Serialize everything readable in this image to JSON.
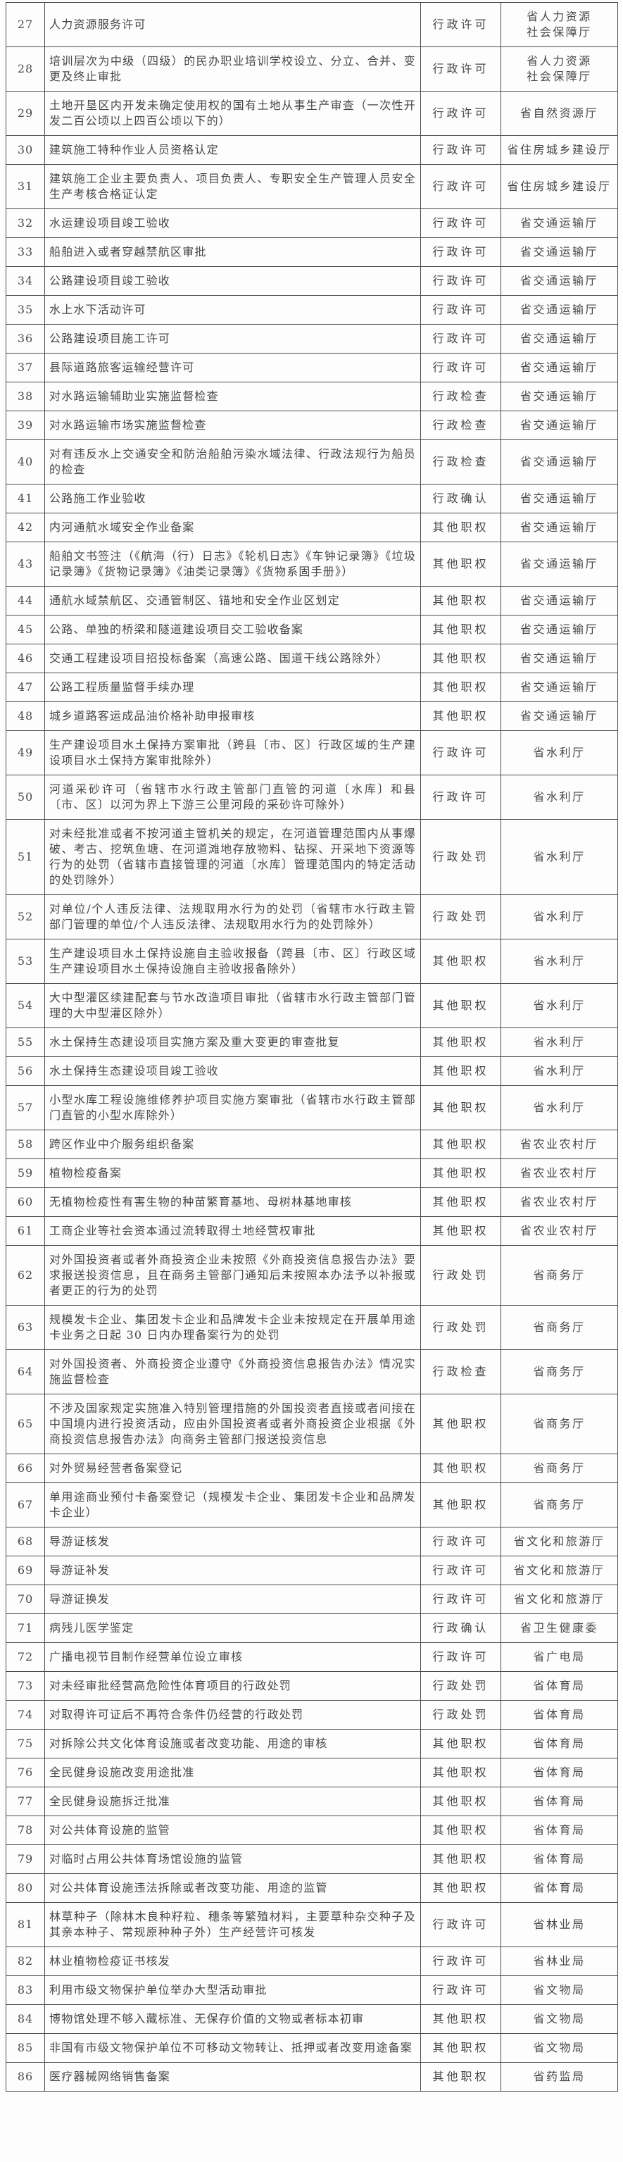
{
  "document": {
    "kind": "scanned-government-table-continuation",
    "colors": {
      "border": "#4c4c4c",
      "text": "#474747",
      "background": "#fdfdfd"
    }
  },
  "table": {
    "rows": [
      {
        "no": "27",
        "item": "人力资源服务许可",
        "type": "行政许可",
        "agency": "省人力资源社会保障厅"
      },
      {
        "no": "28",
        "item": "培训层次为中级（四级）的民办职业培训学校设立、分立、合并、变更及终止审批",
        "type": "行政许可",
        "agency": "省人力资源社会保障厅"
      },
      {
        "no": "29",
        "item": "土地开垦区内开发未确定使用权的国有土地从事生产审查（一次性开发二百公顷以上四百公顷以下的）",
        "type": "行政许可",
        "agency": "省自然资源厅"
      },
      {
        "no": "30",
        "item": "建筑施工特种作业人员资格认定",
        "type": "行政许可",
        "agency": "省住房城乡建设厅"
      },
      {
        "no": "31",
        "item": "建筑施工企业主要负责人、项目负责人、专职安全生产管理人员安全生产考核合格证认定",
        "type": "行政许可",
        "agency": "省住房城乡建设厅"
      },
      {
        "no": "32",
        "item": "水运建设项目竣工验收",
        "type": "行政许可",
        "agency": "省交通运输厅"
      },
      {
        "no": "33",
        "item": "船舶进入或者穿越禁航区审批",
        "type": "行政许可",
        "agency": "省交通运输厅"
      },
      {
        "no": "34",
        "item": "公路建设项目竣工验收",
        "type": "行政许可",
        "agency": "省交通运输厅"
      },
      {
        "no": "35",
        "item": "水上水下活动许可",
        "type": "行政许可",
        "agency": "省交通运输厅"
      },
      {
        "no": "36",
        "item": "公路建设项目施工许可",
        "type": "行政许可",
        "agency": "省交通运输厅"
      },
      {
        "no": "37",
        "item": "县际道路旅客运输经营许可",
        "type": "行政许可",
        "agency": "省交通运输厅"
      },
      {
        "no": "38",
        "item": "对水路运输辅助业实施监督检查",
        "type": "行政检查",
        "agency": "省交通运输厅"
      },
      {
        "no": "39",
        "item": "对水路运输市场实施监督检查",
        "type": "行政检查",
        "agency": "省交通运输厅"
      },
      {
        "no": "40",
        "item": "对有违反水上交通安全和防治船舶污染水域法律、行政法规行为船员的检查",
        "type": "行政检查",
        "agency": "省交通运输厅"
      },
      {
        "no": "41",
        "item": "公路施工作业验收",
        "type": "行政确认",
        "agency": "省交通运输厅"
      },
      {
        "no": "42",
        "item": "内河通航水域安全作业备案",
        "type": "其他职权",
        "agency": "省交通运输厅"
      },
      {
        "no": "43",
        "item": "船舶文书签注（《航海（行）日志》《轮机日志》《车钟记录簿》《垃圾记录簿》《货物记录簿》《油类记录簿》《货物系固手册》）",
        "type": "其他职权",
        "agency": "省交通运输厅"
      },
      {
        "no": "44",
        "item": "通航水域禁航区、交通管制区、锚地和安全作业区划定",
        "type": "其他职权",
        "agency": "省交通运输厅"
      },
      {
        "no": "45",
        "item": "公路、单独的桥梁和隧道建设项目交工验收备案",
        "type": "其他职权",
        "agency": "省交通运输厅"
      },
      {
        "no": "46",
        "item": "交通工程建设项目招投标备案（高速公路、国道干线公路除外）",
        "type": "其他职权",
        "agency": "省交通运输厅"
      },
      {
        "no": "47",
        "item": "公路工程质量监督手续办理",
        "type": "其他职权",
        "agency": "省交通运输厅"
      },
      {
        "no": "48",
        "item": "城乡道路客运成品油价格补助申报审核",
        "type": "其他职权",
        "agency": "省交通运输厅"
      },
      {
        "no": "49",
        "item": "生产建设项目水土保持方案审批（跨县〔市、区〕行政区域的生产建设项目水土保持方案审批除外）",
        "type": "行政许可",
        "agency": "省水利厅"
      },
      {
        "no": "50",
        "item": "河道采砂许可（省辖市水行政主管部门直管的河道〔水库〕和县〔市、区〕以河为界上下游三公里河段的采砂许可除外）",
        "type": "行政许可",
        "agency": "省水利厅"
      },
      {
        "no": "51",
        "item": "对未经批准或者不按河道主管机关的规定，在河道管理范围内从事爆破、考古、挖筑鱼塘、在河道滩地存放物料、钻探、开采地下资源等行为的处罚（省辖市直接管理的河道〔水库〕管理范围内的特定活动的处罚除外）",
        "type": "行政处罚",
        "agency": "省水利厅"
      },
      {
        "no": "52",
        "item": "对单位/个人违反法律、法规取用水行为的处罚（省辖市水行政主管部门管理的单位/个人违反法律、法规取用水行为的处罚除外）",
        "type": "行政处罚",
        "agency": "省水利厅"
      },
      {
        "no": "53",
        "item": "生产建设项目水土保持设施自主验收报备（跨县〔市、区〕行政区域生产建设项目水土保持设施自主验收报备除外）",
        "type": "其他职权",
        "agency": "省水利厅"
      },
      {
        "no": "54",
        "item": "大中型灌区续建配套与节水改造项目审批（省辖市水行政主管部门管理的大中型灌区除外）",
        "type": "其他职权",
        "agency": "省水利厅"
      },
      {
        "no": "55",
        "item": "水土保持生态建设项目实施方案及重大变更的审查批复",
        "type": "其他职权",
        "agency": "省水利厅"
      },
      {
        "no": "56",
        "item": "水土保持生态建设项目竣工验收",
        "type": "其他职权",
        "agency": "省水利厅"
      },
      {
        "no": "57",
        "item": "小型水库工程设施维修养护项目实施方案审批（省辖市水行政主管部门直管的小型水库除外）",
        "type": "其他职权",
        "agency": "省水利厅"
      },
      {
        "no": "58",
        "item": "跨区作业中介服务组织备案",
        "type": "其他职权",
        "agency": "省农业农村厅"
      },
      {
        "no": "59",
        "item": "植物检疫备案",
        "type": "其他职权",
        "agency": "省农业农村厅"
      },
      {
        "no": "60",
        "item": "无植物检疫性有害生物的种苗繁育基地、母树林基地审核",
        "type": "其他职权",
        "agency": "省农业农村厅"
      },
      {
        "no": "61",
        "item": "工商企业等社会资本通过流转取得土地经营权审批",
        "type": "其他职权",
        "agency": "省农业农村厅"
      },
      {
        "no": "62",
        "item": "对外国投资者或者外商投资企业未按照《外商投资信息报告办法》要求报送投资信息，且在商务主管部门通知后未按照本办法予以补报或者更正的行为的处罚",
        "type": "行政处罚",
        "agency": "省商务厅"
      },
      {
        "no": "63",
        "item": "规模发卡企业、集团发卡企业和品牌发卡企业未按规定在开展单用途卡业务之日起 30 日内办理备案行为的处罚",
        "type": "行政处罚",
        "agency": "省商务厅"
      },
      {
        "no": "64",
        "item": "对外国投资者、外商投资企业遵守《外商投资信息报告办法》情况实施监督检查",
        "type": "行政检查",
        "agency": "省商务厅"
      },
      {
        "no": "65",
        "item": "不涉及国家规定实施准入特别管理措施的外国投资者直接或者间接在中国境内进行投资活动，应由外国投资者或者外商投资企业根据《外商投资信息报告办法》向商务主管部门报送投资信息",
        "type": "其他职权",
        "agency": "省商务厅"
      },
      {
        "no": "66",
        "item": "对外贸易经营者备案登记",
        "type": "其他职权",
        "agency": "省商务厅"
      },
      {
        "no": "67",
        "item": "单用途商业预付卡备案登记（规模发卡企业、集团发卡企业和品牌发卡企业）",
        "type": "其他职权",
        "agency": "省商务厅"
      },
      {
        "no": "68",
        "item": "导游证核发",
        "type": "行政许可",
        "agency": "省文化和旅游厅"
      },
      {
        "no": "69",
        "item": "导游证补发",
        "type": "行政许可",
        "agency": "省文化和旅游厅"
      },
      {
        "no": "70",
        "item": "导游证换发",
        "type": "行政许可",
        "agency": "省文化和旅游厅"
      },
      {
        "no": "71",
        "item": "病残儿医学鉴定",
        "type": "行政确认",
        "agency": "省卫生健康委"
      },
      {
        "no": "72",
        "item": "广播电视节目制作经营单位设立审核",
        "type": "行政许可",
        "agency": "省广电局"
      },
      {
        "no": "73",
        "item": "对未经审批经营高危险性体育项目的行政处罚",
        "type": "行政处罚",
        "agency": "省体育局"
      },
      {
        "no": "74",
        "item": "对取得许可证后不再符合条件仍经营的行政处罚",
        "type": "行政处罚",
        "agency": "省体育局"
      },
      {
        "no": "75",
        "item": "对拆除公共文化体育设施或者改变功能、用途的审核",
        "type": "其他职权",
        "agency": "省体育局"
      },
      {
        "no": "76",
        "item": "全民健身设施改变用途批准",
        "type": "其他职权",
        "agency": "省体育局"
      },
      {
        "no": "77",
        "item": "全民健身设施拆迁批准",
        "type": "其他职权",
        "agency": "省体育局"
      },
      {
        "no": "78",
        "item": "对公共体育设施的监管",
        "type": "其他职权",
        "agency": "省体育局"
      },
      {
        "no": "79",
        "item": "对临时占用公共体育场馆设施的监管",
        "type": "其他职权",
        "agency": "省体育局"
      },
      {
        "no": "80",
        "item": "对公共体育设施违法拆除或者改变功能、用途的监管",
        "type": "其他职权",
        "agency": "省体育局"
      },
      {
        "no": "81",
        "item": "林草种子（除林木良种籽粒、穗条等繁殖材料，主要草种杂交种子及其亲本种子、常规原种种子外）生产经营许可核发",
        "type": "行政许可",
        "agency": "省林业局"
      },
      {
        "no": "82",
        "item": "林业植物检疫证书核发",
        "type": "行政许可",
        "agency": "省林业局"
      },
      {
        "no": "83",
        "item": "利用市级文物保护单位举办大型活动审批",
        "type": "行政许可",
        "agency": "省文物局"
      },
      {
        "no": "84",
        "item": "博物馆处理不够入藏标准、无保存价值的文物或者标本初审",
        "type": "其他职权",
        "agency": "省文物局"
      },
      {
        "no": "85",
        "item": "非国有市级文物保护单位不可移动文物转让、抵押或者改变用途备案",
        "type": "其他职权",
        "agency": "省文物局"
      },
      {
        "no": "86",
        "item": "医疗器械网络销售备案",
        "type": "其他职权",
        "agency": "省药监局"
      }
    ]
  }
}
